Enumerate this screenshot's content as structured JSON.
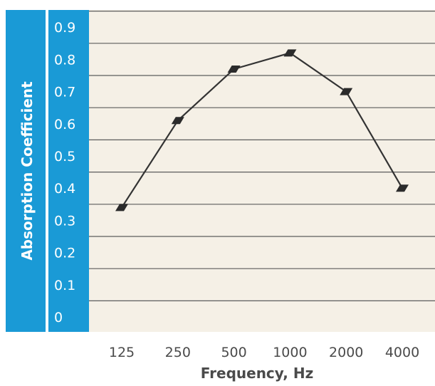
{
  "chart_data": {
    "type": "line",
    "title": "",
    "xlabel": "Frequency, Hz",
    "ylabel": "Absorption Coefficient",
    "categories": [
      "125",
      "250",
      "500",
      "1000",
      "2000",
      "4000"
    ],
    "series": [
      {
        "values": [
          0.34,
          0.61,
          0.77,
          0.82,
          0.7,
          0.4
        ]
      }
    ],
    "yticks": [
      "0",
      "0.1",
      "0.2",
      "0.3",
      "0.4",
      "0.5",
      "0.6",
      "0.7",
      "0.8",
      "0.9"
    ],
    "ylim": [
      0,
      0.9
    ],
    "grid": true,
    "colors": {
      "axis_band": "#1a9ad6",
      "plot_background": "#f5f0e6",
      "line": "#333333"
    }
  }
}
